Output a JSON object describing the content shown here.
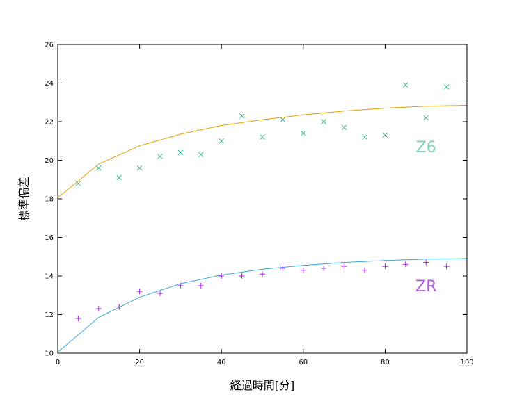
{
  "chart_data": {
    "type": "scatter",
    "xlabel": "経過時間[分]",
    "ylabel": "標準偏差",
    "xlim": [
      0,
      100
    ],
    "ylim": [
      10,
      26
    ],
    "x_ticks": [
      0,
      20,
      40,
      60,
      80,
      100
    ],
    "y_ticks": [
      10,
      12,
      14,
      16,
      18,
      20,
      22,
      24,
      26
    ],
    "grid": false,
    "series": [
      {
        "name": "Z6",
        "marker": "x",
        "color": "#3cb88a",
        "points": [
          [
            5,
            18.8
          ],
          [
            10,
            19.6
          ],
          [
            15,
            19.1
          ],
          [
            20,
            19.6
          ],
          [
            25,
            20.2
          ],
          [
            30,
            20.4
          ],
          [
            35,
            20.3
          ],
          [
            40,
            21.0
          ],
          [
            45,
            22.3
          ],
          [
            50,
            21.2
          ],
          [
            55,
            22.1
          ],
          [
            60,
            21.4
          ],
          [
            65,
            22.0
          ],
          [
            70,
            21.7
          ],
          [
            75,
            21.2
          ],
          [
            80,
            21.3
          ],
          [
            85,
            23.9
          ],
          [
            90,
            22.2
          ],
          [
            95,
            23.8
          ]
        ]
      },
      {
        "name": "ZR",
        "marker": "+",
        "color": "#a020f0",
        "points": [
          [
            5,
            11.8
          ],
          [
            10,
            12.3
          ],
          [
            15,
            12.4
          ],
          [
            20,
            13.2
          ],
          [
            25,
            13.1
          ],
          [
            30,
            13.5
          ],
          [
            35,
            13.5
          ],
          [
            40,
            14.0
          ],
          [
            45,
            14.0
          ],
          [
            50,
            14.1
          ],
          [
            55,
            14.4
          ],
          [
            60,
            14.3
          ],
          [
            65,
            14.4
          ],
          [
            70,
            14.5
          ],
          [
            75,
            14.3
          ],
          [
            80,
            14.5
          ],
          [
            85,
            14.6
          ],
          [
            90,
            14.7
          ],
          [
            95,
            14.5
          ]
        ]
      }
    ],
    "fits": [
      {
        "series": "Z6",
        "color": "#e5a000",
        "x": [
          0,
          10,
          20,
          30,
          40,
          50,
          60,
          70,
          80,
          90,
          100
        ],
        "y": [
          18.05,
          19.8,
          20.75,
          21.35,
          21.8,
          22.1,
          22.35,
          22.55,
          22.7,
          22.8,
          22.85
        ]
      },
      {
        "series": "ZR",
        "color": "#36a9d9",
        "x": [
          0,
          10,
          20,
          30,
          40,
          50,
          60,
          70,
          80,
          90,
          100
        ],
        "y": [
          10.05,
          11.85,
          12.9,
          13.6,
          14.05,
          14.35,
          14.55,
          14.7,
          14.8,
          14.87,
          14.9
        ]
      }
    ],
    "annotations": [
      {
        "text": "Z6",
        "color": "#7ad3b4",
        "x": 90,
        "y": 20.7
      },
      {
        "text": "ZR",
        "color": "#b25ae0",
        "x": 90,
        "y": 13.5
      }
    ]
  }
}
